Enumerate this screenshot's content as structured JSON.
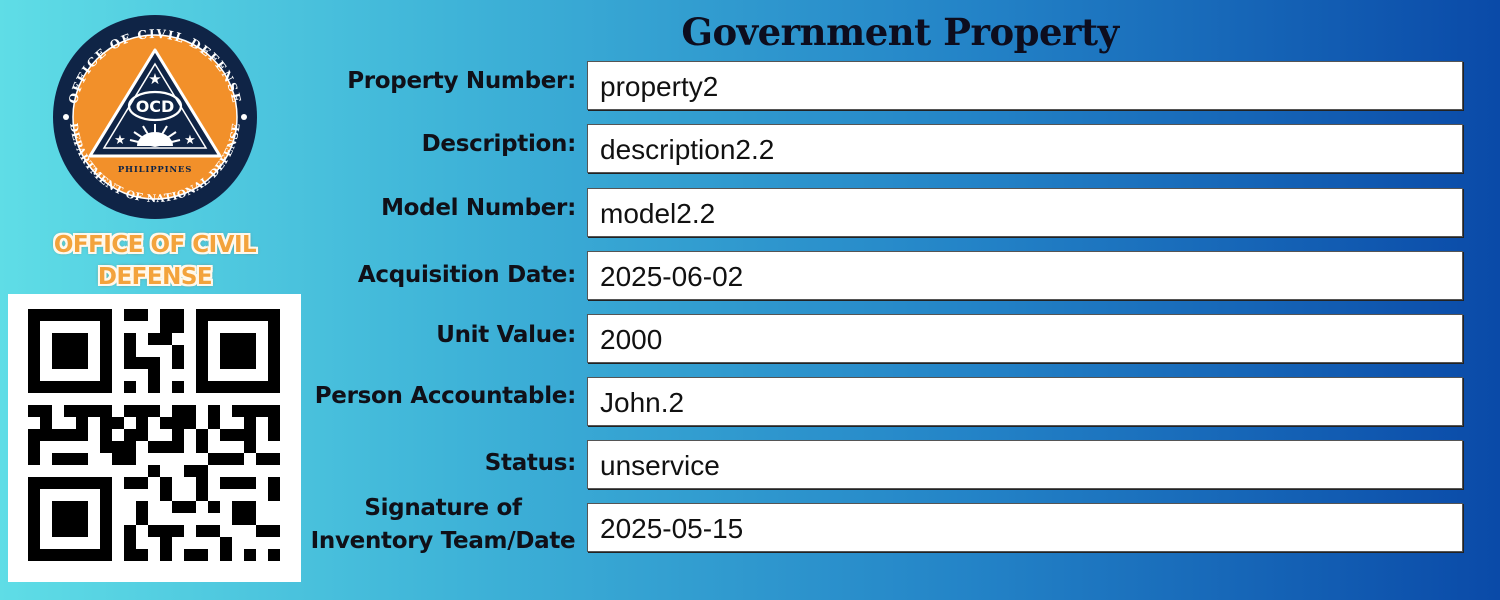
{
  "organization": {
    "seal_ring_top": "OFFICE OF CIVIL DEFENSE",
    "seal_ring_bottom": "DEPARTMENT OF NATIONAL DEFENSE",
    "seal_center": "OCD",
    "seal_country": "PHILIPPINES",
    "name": "OFFICE OF CIVIL DEFENSE",
    "seal_colors": {
      "ring": "#0f2446",
      "inner": "#f2902a",
      "triangle": "#0f2446"
    }
  },
  "form": {
    "title": "Government Property",
    "fields": [
      {
        "label": "Property Number:",
        "value": "property2"
      },
      {
        "label": "Description:",
        "value": "description2.2"
      },
      {
        "label": "Model Number:",
        "value": "model2.2"
      },
      {
        "label": "Acquisition Date:",
        "value": "2025-06-02"
      },
      {
        "label": "Unit Value:",
        "value": "2000"
      },
      {
        "label": "Person Accountable:",
        "value": "John.2"
      },
      {
        "label": "Status:",
        "value": "unservice"
      },
      {
        "label": "Signature of Inventory Team/Date",
        "value": "2025-05-15"
      }
    ]
  },
  "qr": {
    "icon": "qr-code-icon"
  }
}
